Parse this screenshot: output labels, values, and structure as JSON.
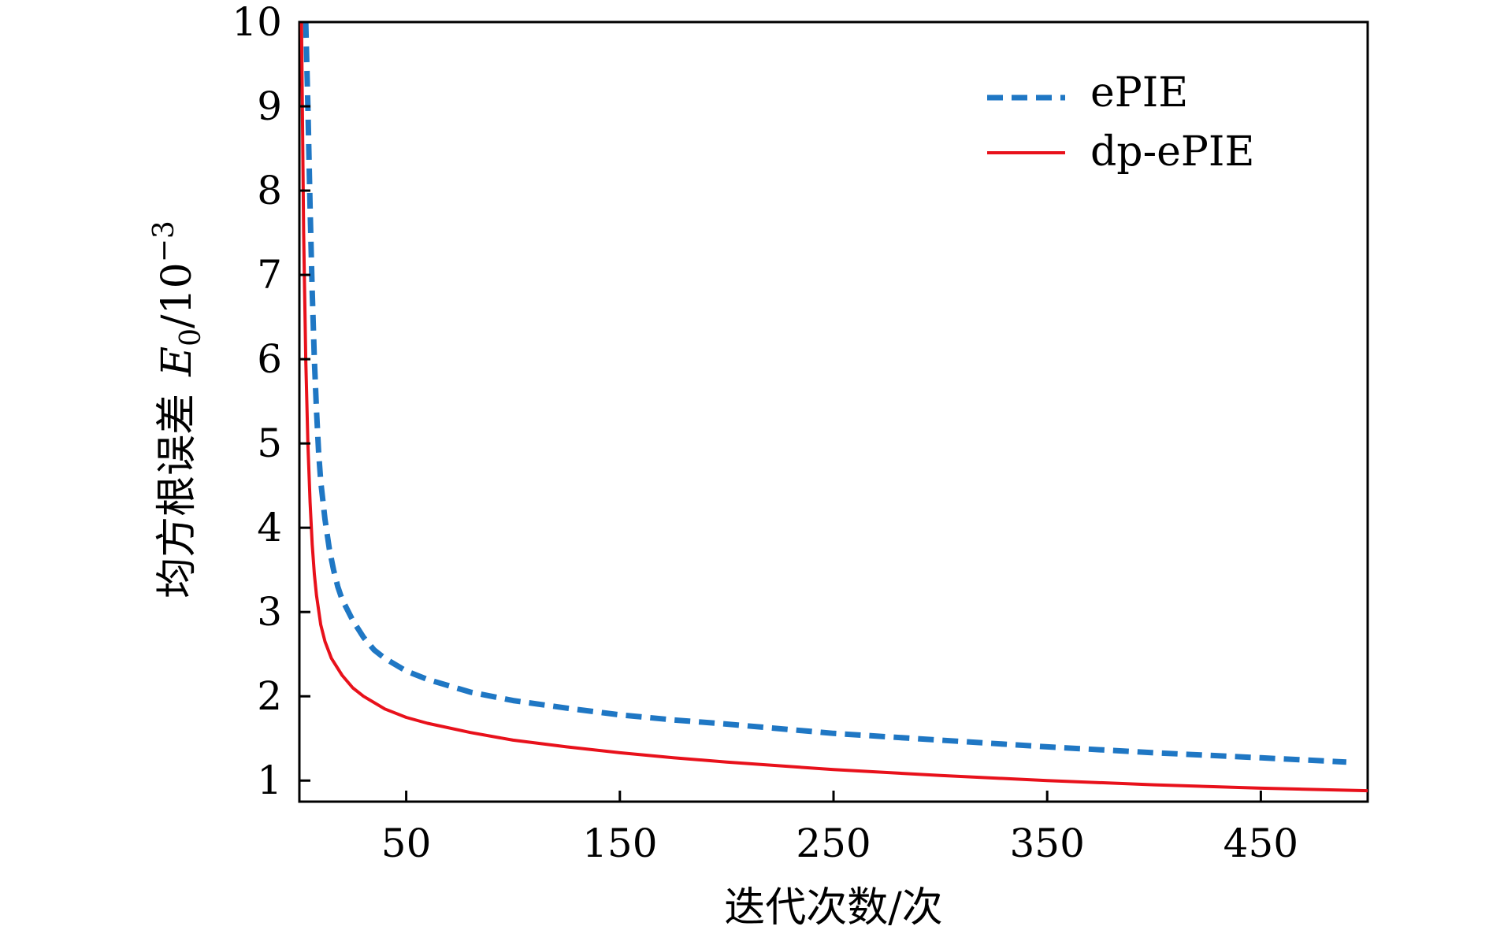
{
  "chart_data": {
    "type": "line",
    "title": "",
    "xlabel": "迭代次数/次",
    "ylabel_prefix": "均方根误差",
    "ylabel_var": "E",
    "ylabel_sub": "0",
    "ylabel_unit": "/10",
    "ylabel_exp": "−3",
    "xlim": [
      0,
      500
    ],
    "ylim": [
      0.75,
      10
    ],
    "x_ticks": [
      50,
      150,
      250,
      350,
      450
    ],
    "y_ticks": [
      1,
      2,
      3,
      4,
      5,
      6,
      7,
      8,
      9,
      10
    ],
    "grid": false,
    "legend_position": "top-right",
    "series": [
      {
        "name": "ePIE",
        "style": "dashed",
        "color": "#1f77c4",
        "x": [
          3,
          4,
          5,
          6,
          7,
          8,
          9,
          10,
          12,
          14,
          16,
          18,
          20,
          25,
          30,
          35,
          40,
          50,
          60,
          80,
          100,
          125,
          150,
          175,
          200,
          250,
          300,
          350,
          400,
          450,
          490
        ],
        "y": [
          10.0,
          9.0,
          7.8,
          6.8,
          6.0,
          5.4,
          4.9,
          4.55,
          4.1,
          3.75,
          3.5,
          3.3,
          3.15,
          2.9,
          2.7,
          2.55,
          2.45,
          2.3,
          2.2,
          2.05,
          1.95,
          1.86,
          1.78,
          1.72,
          1.67,
          1.56,
          1.48,
          1.4,
          1.33,
          1.27,
          1.22
        ]
      },
      {
        "name": "dp-ePIE",
        "style": "solid",
        "color": "#e8111b",
        "x": [
          1,
          2,
          3,
          4,
          5,
          6,
          7,
          8,
          10,
          12,
          15,
          20,
          25,
          30,
          40,
          50,
          60,
          80,
          100,
          125,
          150,
          175,
          200,
          250,
          300,
          350,
          400,
          450,
          500
        ],
        "y": [
          10.0,
          7.5,
          6.0,
          5.0,
          4.3,
          3.8,
          3.45,
          3.2,
          2.85,
          2.65,
          2.45,
          2.25,
          2.1,
          2.0,
          1.85,
          1.75,
          1.68,
          1.57,
          1.48,
          1.4,
          1.33,
          1.27,
          1.22,
          1.13,
          1.06,
          1.0,
          0.95,
          0.91,
          0.88
        ]
      }
    ]
  }
}
